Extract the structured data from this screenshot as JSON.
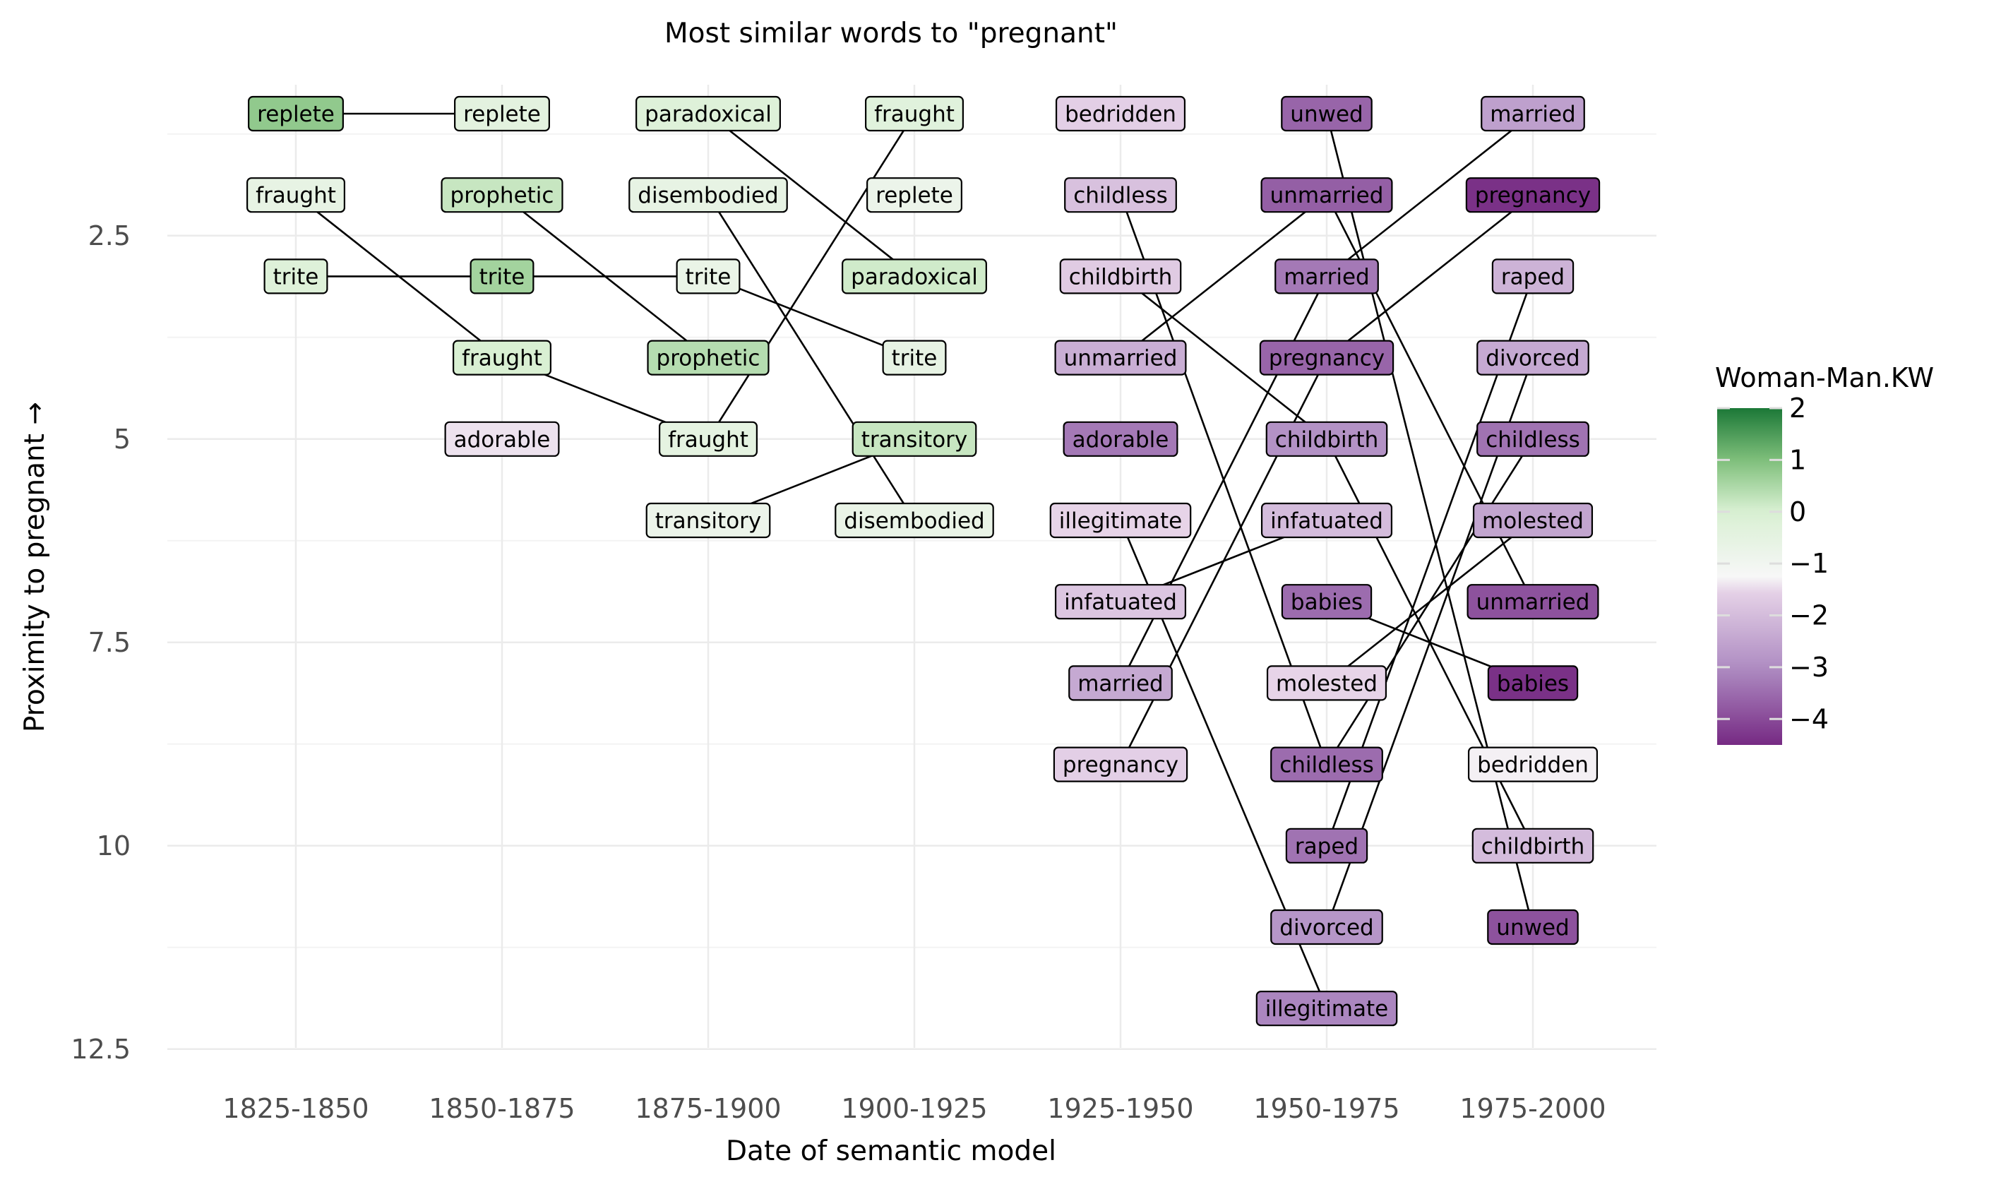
{
  "chart_data": {
    "type": "bump",
    "title": "Most similar words to \"pregnant\"",
    "xlabel": "Date of semantic model",
    "ylabel": "Proximity to pregnant →",
    "periods": [
      "1825-1850",
      "1850-1875",
      "1875-1900",
      "1900-1925",
      "1925-1950",
      "1950-1975",
      "1975-2000"
    ],
    "y_ticks": [
      "2.5",
      "5",
      "7.5",
      "10",
      "12.5"
    ],
    "ylim": [
      13.0,
      0.5
    ],
    "y_reversed": true,
    "grid": true,
    "legend": {
      "title": "Woman-Man.KW",
      "position": "right",
      "ticks": [
        "2",
        "1",
        "0",
        "−1",
        "−2",
        "−3",
        "−4"
      ],
      "range": [
        -4.5,
        2.0
      ],
      "colormap": "diverging purple-white-green",
      "low_color": "#762a83",
      "mid_color": "#f7f7f7",
      "high_color": "#1b7837"
    },
    "words": [
      {
        "period": "1825-1850",
        "rank": 1,
        "word": "replete",
        "score": 0.8
      },
      {
        "period": "1825-1850",
        "rank": 2,
        "word": "fraught",
        "score": -0.6
      },
      {
        "period": "1825-1850",
        "rank": 3,
        "word": "trite",
        "score": -0.2
      },
      {
        "period": "1850-1875",
        "rank": 1,
        "word": "replete",
        "score": -0.4
      },
      {
        "period": "1850-1875",
        "rank": 2,
        "word": "prophetic",
        "score": 0.2
      },
      {
        "period": "1850-1875",
        "rank": 3,
        "word": "trite",
        "score": 0.6
      },
      {
        "period": "1850-1875",
        "rank": 4,
        "word": "fraught",
        "score": 0.0
      },
      {
        "period": "1850-1875",
        "rank": 5,
        "word": "adorable",
        "score": -1.4
      },
      {
        "period": "1875-1900",
        "rank": 1,
        "word": "paradoxical",
        "score": -0.2
      },
      {
        "period": "1875-1900",
        "rank": 2,
        "word": "disembodied",
        "score": -0.6
      },
      {
        "period": "1875-1900",
        "rank": 3,
        "word": "trite",
        "score": -0.7
      },
      {
        "period": "1875-1900",
        "rank": 4,
        "word": "prophetic",
        "score": 0.4
      },
      {
        "period": "1875-1900",
        "rank": 5,
        "word": "fraught",
        "score": -0.5
      },
      {
        "period": "1875-1900",
        "rank": 6,
        "word": "transitory",
        "score": -0.8
      },
      {
        "period": "1900-1925",
        "rank": 1,
        "word": "fraught",
        "score": -0.3
      },
      {
        "period": "1900-1925",
        "rank": 2,
        "word": "replete",
        "score": -0.8
      },
      {
        "period": "1900-1925",
        "rank": 3,
        "word": "paradoxical",
        "score": 0.1
      },
      {
        "period": "1900-1925",
        "rank": 4,
        "word": "trite",
        "score": -0.6
      },
      {
        "period": "1900-1925",
        "rank": 5,
        "word": "transitory",
        "score": 0.2
      },
      {
        "period": "1900-1925",
        "rank": 6,
        "word": "disembodied",
        "score": -0.7
      },
      {
        "period": "1925-1950",
        "rank": 1,
        "word": "bedridden",
        "score": -1.6
      },
      {
        "period": "1925-1950",
        "rank": 2,
        "word": "childless",
        "score": -1.9
      },
      {
        "period": "1925-1950",
        "rank": 3,
        "word": "childbirth",
        "score": -1.7
      },
      {
        "period": "1925-1950",
        "rank": 4,
        "word": "unmarried",
        "score": -2.3
      },
      {
        "period": "1925-1950",
        "rank": 5,
        "word": "adorable",
        "score": -3.3
      },
      {
        "period": "1925-1950",
        "rank": 6,
        "word": "illegitimate",
        "score": -1.5
      },
      {
        "period": "1925-1950",
        "rank": 7,
        "word": "infatuated",
        "score": -1.8
      },
      {
        "period": "1925-1950",
        "rank": 8,
        "word": "married",
        "score": -2.4
      },
      {
        "period": "1925-1950",
        "rank": 9,
        "word": "pregnancy",
        "score": -1.6
      },
      {
        "period": "1950-1975",
        "rank": 1,
        "word": "unwed",
        "score": -3.6
      },
      {
        "period": "1950-1975",
        "rank": 2,
        "word": "unmarried",
        "score": -3.7
      },
      {
        "period": "1950-1975",
        "rank": 3,
        "word": "married",
        "score": -3.3
      },
      {
        "period": "1950-1975",
        "rank": 4,
        "word": "pregnancy",
        "score": -3.6
      },
      {
        "period": "1950-1975",
        "rank": 5,
        "word": "childbirth",
        "score": -2.9
      },
      {
        "period": "1950-1975",
        "rank": 6,
        "word": "infatuated",
        "score": -2.0
      },
      {
        "period": "1950-1975",
        "rank": 7,
        "word": "babies",
        "score": -3.5
      },
      {
        "period": "1950-1975",
        "rank": 8,
        "word": "molested",
        "score": -1.5
      },
      {
        "period": "1950-1975",
        "rank": 9,
        "word": "childless",
        "score": -3.5
      },
      {
        "period": "1950-1975",
        "rank": 10,
        "word": "raped",
        "score": -3.4
      },
      {
        "period": "1950-1975",
        "rank": 11,
        "word": "divorced",
        "score": -2.8
      },
      {
        "period": "1950-1975",
        "rank": 12,
        "word": "illegitimate",
        "score": -3.1
      },
      {
        "period": "1975-2000",
        "rank": 1,
        "word": "married",
        "score": -2.6
      },
      {
        "period": "1975-2000",
        "rank": 2,
        "word": "pregnancy",
        "score": -4.4
      },
      {
        "period": "1975-2000",
        "rank": 3,
        "word": "raped",
        "score": -2.2
      },
      {
        "period": "1975-2000",
        "rank": 4,
        "word": "divorced",
        "score": -2.4
      },
      {
        "period": "1975-2000",
        "rank": 5,
        "word": "childless",
        "score": -3.4
      },
      {
        "period": "1975-2000",
        "rank": 6,
        "word": "molested",
        "score": -2.5
      },
      {
        "period": "1975-2000",
        "rank": 7,
        "word": "unmarried",
        "score": -3.9
      },
      {
        "period": "1975-2000",
        "rank": 8,
        "word": "babies",
        "score": -4.4
      },
      {
        "period": "1975-2000",
        "rank": 9,
        "word": "bedridden",
        "score": -1.3
      },
      {
        "period": "1975-2000",
        "rank": 10,
        "word": "childbirth",
        "score": -2.0
      },
      {
        "period": "1975-2000",
        "rank": 11,
        "word": "unwed",
        "score": -3.9
      }
    ]
  }
}
